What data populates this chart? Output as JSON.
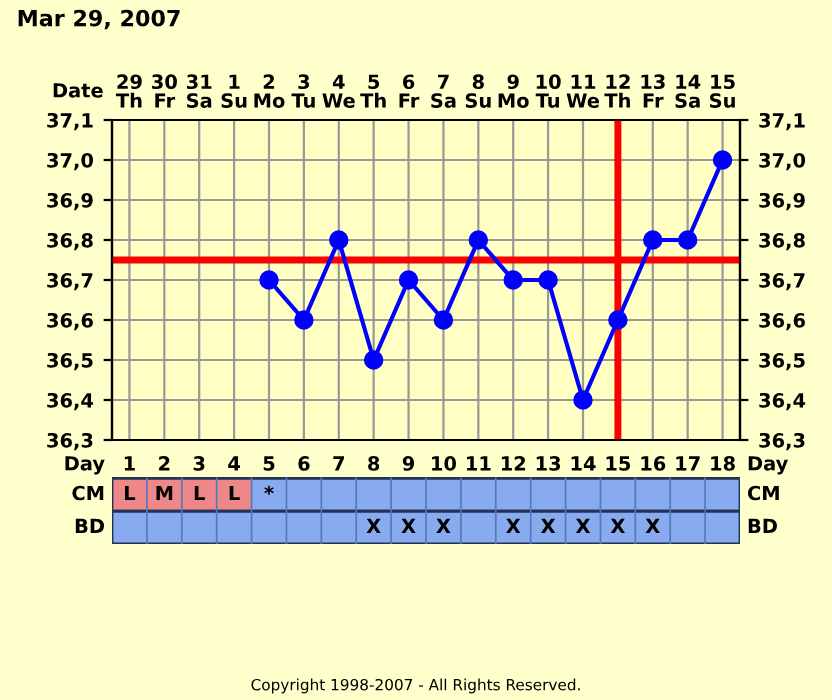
{
  "chart_data": [
    {
      "type": "line",
      "title": "Mar 29, 2007",
      "xlabel": "Date",
      "categories": [
        "29\nTh",
        "30\nFr",
        "31\nSa",
        "1\nSu",
        "2\nMo",
        "3\nTu",
        "4\nWe",
        "5\nTh",
        "6\nFr",
        "7\nSa",
        "8\nSu",
        "9\nMo",
        "10\nTu",
        "11\nWe",
        "12\nTh",
        "13\nFr",
        "14\nSa",
        "15\nSu"
      ],
      "series": [
        {
          "color": "#0000ff",
          "values": [
            null,
            null,
            null,
            null,
            36.7,
            36.6,
            36.8,
            36.5,
            36.7,
            36.6,
            36.8,
            36.7,
            36.7,
            36.4,
            36.6,
            36.8,
            36.8,
            37.0
          ]
        }
      ],
      "ylim": [
        36.3,
        37.1
      ],
      "yticks": [
        {
          "value": 36.3,
          "label": "36,3"
        },
        {
          "value": 36.4,
          "label": "36,4"
        },
        {
          "value": 36.5,
          "label": "36,5"
        },
        {
          "value": 36.6,
          "label": "36,6"
        },
        {
          "value": 36.7,
          "label": "36,7"
        },
        {
          "value": 36.8,
          "label": "36,8"
        },
        {
          "value": 36.9,
          "label": "36,9"
        },
        {
          "value": 37.0,
          "label": "37,0"
        },
        {
          "value": 37.1,
          "label": "37,1"
        }
      ],
      "y2lim": [
        36.3,
        37.1
      ],
      "y2ticks": [
        {
          "value": 36.3,
          "label": "36,3"
        },
        {
          "value": 36.4,
          "label": "36,4"
        },
        {
          "value": 36.5,
          "label": "36,5"
        },
        {
          "value": 36.6,
          "label": "36,6"
        },
        {
          "value": 36.7,
          "label": "36,7"
        },
        {
          "value": 36.8,
          "label": "36,8"
        },
        {
          "value": 36.9,
          "label": "36,9"
        },
        {
          "value": 37.0,
          "label": "37,0"
        },
        {
          "value": 37.1,
          "label": "37,1"
        }
      ],
      "ref_lines": [
        {
          "axis": "y",
          "value": 36.75,
          "color": "#ff0000"
        },
        {
          "axis": "x",
          "value": "12\nTh",
          "color": "#ff0000"
        }
      ],
      "grid": true,
      "marker": "circle",
      "line_style": "solid"
    },
    {
      "type": "heatmap",
      "xlabel": "Day",
      "categories": [
        "1",
        "2",
        "3",
        "4",
        "5",
        "6",
        "7",
        "8",
        "9",
        "10",
        "11",
        "12",
        "13",
        "14",
        "15",
        "16",
        "17",
        "18"
      ],
      "y_categories": [
        "CM",
        "BD"
      ],
      "y2_categories": [
        "CM",
        "BD"
      ],
      "cells": [
        [
          null,
          null,
          null,
          null,
          null,
          null,
          null,
          null,
          null,
          null,
          null,
          null,
          null,
          null,
          null,
          null,
          null,
          null
        ],
        [
          null,
          null,
          null,
          null,
          null,
          null,
          null,
          null,
          null,
          null,
          null,
          null,
          null,
          null,
          null,
          null,
          null,
          null
        ]
      ],
      "colors": [
        [
          "#ee8888",
          "#ee8888",
          "#ee8888",
          "#ee8888",
          "#88aaee",
          "#88aaee",
          "#88aaee",
          "#88aaee",
          "#88aaee",
          "#88aaee",
          "#88aaee",
          "#88aaee",
          "#88aaee",
          "#88aaee",
          "#88aaee",
          "#88aaee",
          "#88aaee",
          "#88aaee"
        ],
        [
          "#88aaee",
          "#88aaee",
          "#88aaee",
          "#88aaee",
          "#88aaee",
          "#88aaee",
          "#88aaee",
          "#88aaee",
          "#88aaee",
          "#88aaee",
          "#88aaee",
          "#88aaee",
          "#88aaee",
          "#88aaee",
          "#88aaee",
          "#88aaee",
          "#88aaee",
          "#88aaee"
        ]
      ],
      "cell_labels": [
        [
          "L",
          "M",
          "L",
          "L",
          "*",
          null,
          null,
          null,
          null,
          null,
          null,
          null,
          null,
          null,
          null,
          null,
          null,
          null
        ],
        [
          null,
          null,
          null,
          null,
          null,
          null,
          null,
          "X",
          "X",
          "X",
          null,
          "X",
          "X",
          "X",
          "X",
          "X",
          null,
          null
        ]
      ],
      "annotations": [
        "Copyright 1998-2007 - All Rights Reserved."
      ]
    }
  ]
}
